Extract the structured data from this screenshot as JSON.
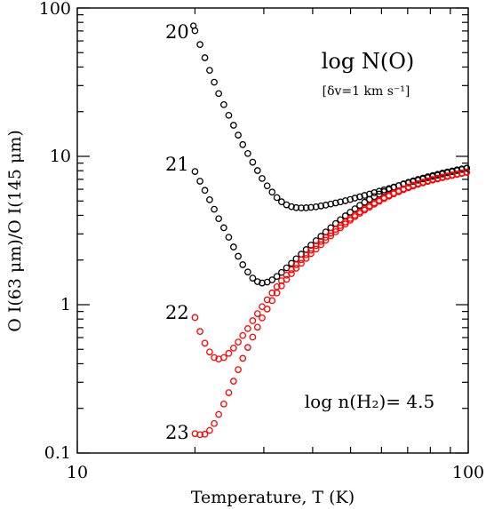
{
  "chart_data": {
    "type": "scatter",
    "xscale": "log",
    "yscale": "log",
    "xlim": [
      10,
      100
    ],
    "ylim": [
      0.1,
      100
    ],
    "xlabel": "Temperature, T (K)",
    "ylabel": "O I(63 μm)/O I(145 μm)",
    "x_tick_labels": [
      "10",
      "100"
    ],
    "y_tick_labels": [
      "0.1",
      "1",
      "10",
      "100"
    ],
    "annotations": {
      "column_title": "log N(O)",
      "doppler": "[δv=1 km s⁻¹]",
      "density": "log n(H₂)= 4.5"
    },
    "series": [
      {
        "label": "20",
        "color": "#000000",
        "x": [
          20.0,
          20.6,
          21.2,
          21.8,
          22.4,
          23.0,
          23.7,
          24.4,
          25.1,
          25.8,
          26.5,
          27.3,
          28.1,
          28.9,
          29.7,
          30.6,
          31.5,
          32.4,
          33.3,
          34.3,
          35.3,
          36.3,
          37.4,
          38.5,
          39.6,
          40.8,
          42.0,
          43.2,
          44.5,
          45.8,
          47.1,
          48.5,
          49.9,
          51.3,
          52.8,
          54.3,
          55.9,
          57.5,
          59.2,
          60.9,
          62.7,
          64.5,
          66.4,
          68.3,
          70.3,
          72.3,
          74.4,
          76.6,
          78.8,
          81.1,
          83.5,
          85.9,
          88.4,
          91.0,
          93.6,
          96.3,
          99.1
        ],
        "y": [
          70.3,
          56.7,
          46.2,
          38.0,
          31.6,
          26.5,
          22.3,
          18.9,
          16.2,
          13.9,
          12.0,
          10.45,
          9.13,
          8.02,
          7.09,
          6.33,
          5.74,
          5.27,
          4.94,
          4.71,
          4.58,
          4.51,
          4.49,
          4.5,
          4.53,
          4.57,
          4.63,
          4.69,
          4.77,
          4.85,
          4.93,
          5.02,
          5.12,
          5.23,
          5.34,
          5.45,
          5.57,
          5.69,
          5.82,
          5.94,
          6.07,
          6.21,
          6.34,
          6.48,
          6.62,
          6.76,
          6.9,
          7.04,
          7.18,
          7.32,
          7.46,
          7.6,
          7.74,
          7.88,
          8.02,
          8.16,
          8.29
        ]
      },
      {
        "label": "21",
        "color": "#000000",
        "x": [
          20.0,
          20.6,
          21.2,
          21.8,
          22.4,
          23.0,
          23.7,
          24.4,
          25.1,
          25.8,
          26.5,
          27.3,
          28.1,
          28.9,
          29.7,
          30.6,
          31.5,
          32.4,
          33.3,
          34.3,
          35.3,
          36.3,
          37.4,
          38.5,
          39.6,
          40.8,
          42.0,
          43.2,
          44.5,
          45.8,
          47.1,
          48.5,
          49.9,
          51.3,
          52.8,
          54.3,
          55.9,
          57.5,
          59.2,
          60.9,
          62.7,
          64.5,
          66.4,
          68.3,
          70.3,
          72.3,
          74.4,
          76.6,
          78.8,
          81.1,
          83.5,
          85.9,
          88.4,
          91.0,
          93.6,
          96.3,
          99.1
        ],
        "y": [
          7.9,
          6.8,
          5.9,
          5.1,
          4.4,
          3.8,
          3.3,
          2.85,
          2.45,
          2.12,
          1.86,
          1.66,
          1.51,
          1.43,
          1.4,
          1.42,
          1.47,
          1.55,
          1.65,
          1.77,
          1.9,
          2.04,
          2.19,
          2.35,
          2.52,
          2.7,
          2.89,
          3.09,
          3.3,
          3.52,
          3.74,
          3.97,
          4.2,
          4.43,
          4.67,
          4.9,
          5.13,
          5.35,
          5.57,
          5.78,
          5.98,
          6.17,
          6.35,
          6.52,
          6.68,
          6.84,
          6.99,
          7.14,
          7.29,
          7.43,
          7.57,
          7.71,
          7.84,
          7.97,
          8.1,
          8.22,
          8.34
        ]
      },
      {
        "label": "22",
        "color": "#ff0000",
        "x": [
          20.0,
          20.6,
          21.2,
          21.8,
          22.4,
          23.0,
          23.7,
          24.4,
          25.1,
          25.8,
          26.5,
          27.3,
          28.1,
          28.9,
          29.7,
          30.6,
          31.5,
          32.4,
          33.3,
          34.3,
          35.3,
          36.3,
          37.4,
          38.5,
          39.6,
          40.8,
          42.0,
          43.2,
          44.5,
          45.8,
          47.1,
          48.5,
          49.9,
          51.3,
          52.8,
          54.3,
          55.9,
          57.5,
          59.2,
          60.9,
          62.7,
          64.5,
          66.4,
          68.3,
          70.3,
          72.3,
          74.4,
          76.6,
          78.8,
          81.1,
          83.5,
          85.9,
          88.4,
          91.0,
          93.6,
          96.3,
          99.1
        ],
        "y": [
          0.82,
          0.66,
          0.55,
          0.48,
          0.44,
          0.43,
          0.44,
          0.47,
          0.51,
          0.56,
          0.62,
          0.69,
          0.78,
          0.87,
          0.97,
          1.08,
          1.2,
          1.32,
          1.45,
          1.58,
          1.72,
          1.86,
          2.01,
          2.17,
          2.33,
          2.5,
          2.67,
          2.85,
          3.03,
          3.22,
          3.41,
          3.61,
          3.81,
          4.01,
          4.22,
          4.43,
          4.64,
          4.85,
          5.06,
          5.27,
          5.47,
          5.67,
          5.86,
          6.04,
          6.22,
          6.39,
          6.55,
          6.7,
          6.85,
          6.99,
          7.12,
          7.25,
          7.37,
          7.49,
          7.61,
          7.72,
          7.83
        ]
      },
      {
        "label": "23",
        "color": "#ff0000",
        "x": [
          20.0,
          20.6,
          21.2,
          21.8,
          22.4,
          23.0,
          23.7,
          24.4,
          25.1,
          25.8,
          26.5,
          27.3,
          28.1,
          28.9,
          29.7,
          30.6,
          31.5,
          32.4,
          33.3,
          34.3,
          35.3,
          36.3,
          37.4,
          38.5,
          39.6,
          40.8,
          42.0,
          43.2,
          44.5,
          45.8,
          47.1,
          48.5,
          49.9,
          51.3,
          52.8,
          54.3,
          55.9,
          57.5,
          59.2,
          60.9,
          62.7,
          64.5,
          66.4,
          68.3,
          70.3,
          72.3,
          74.4,
          76.6,
          78.8,
          81.1,
          83.5,
          85.9,
          88.4,
          91.0,
          93.6,
          96.3,
          99.1
        ],
        "y": [
          0.135,
          0.133,
          0.134,
          0.142,
          0.158,
          0.182,
          0.214,
          0.255,
          0.305,
          0.365,
          0.435,
          0.515,
          0.605,
          0.705,
          0.815,
          0.935,
          1.065,
          1.2,
          1.34,
          1.48,
          1.62,
          1.76,
          1.9,
          2.05,
          2.21,
          2.37,
          2.54,
          2.72,
          2.91,
          3.1,
          3.3,
          3.5,
          3.71,
          3.92,
          4.13,
          4.34,
          4.55,
          4.76,
          4.97,
          5.18,
          5.38,
          5.58,
          5.77,
          5.96,
          6.14,
          6.31,
          6.47,
          6.62,
          6.77,
          6.91,
          7.05,
          7.18,
          7.31,
          7.43,
          7.55,
          7.67,
          7.78
        ]
      }
    ]
  }
}
